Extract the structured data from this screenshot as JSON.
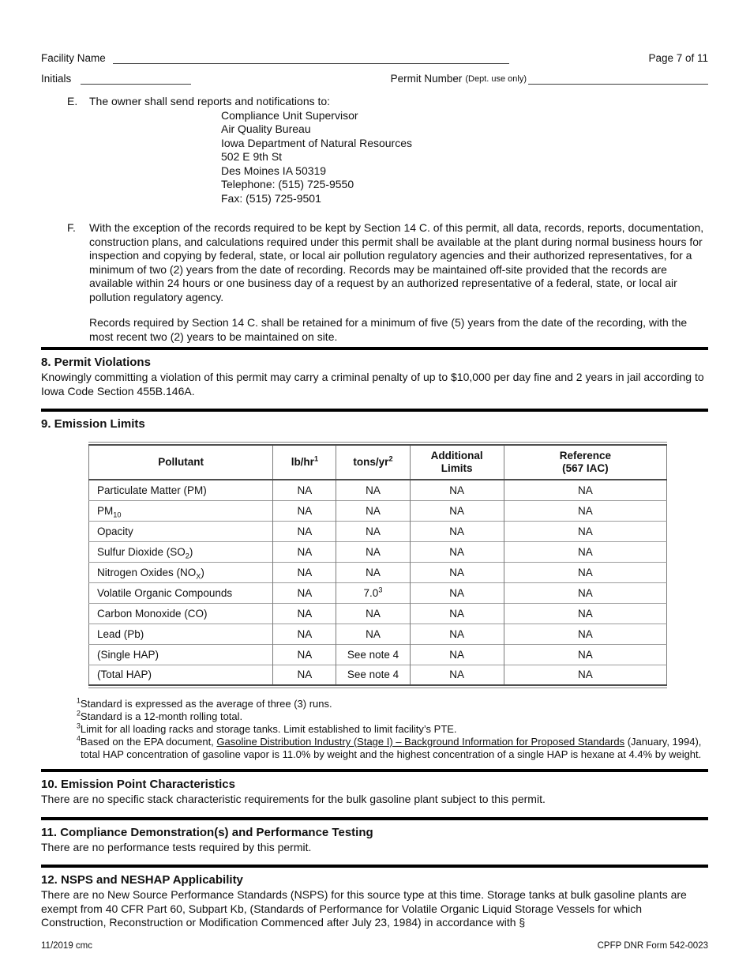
{
  "header": {
    "facility_name_label": "Facility Name",
    "page_label": "Page 7 of 11",
    "initials_label": "Initials",
    "permit_number_label": "Permit Number",
    "permit_number_note": "(Dept. use only)"
  },
  "item_e": {
    "letter": "E.",
    "intro": "The owner shall send reports and notifications to:",
    "address_lines": [
      "Compliance Unit Supervisor",
      "Air Quality Bureau",
      "Iowa Department of Natural Resources",
      "502 E 9th St",
      "Des Moines IA 50319",
      "Telephone: (515) 725-9550",
      "Fax: (515) 725-9501"
    ]
  },
  "item_f": {
    "letter": "F.",
    "para1": "With the exception of the records required to be kept by Section 14 C. of this permit, all data, records, reports, documentation, construction plans, and calculations required under this permit shall be available at the plant during normal business hours for inspection and copying by federal, state, or local air pollution regulatory agencies and their authorized representatives, for a minimum of two (2) years from the date of recording. Records may be maintained off-site provided that the records are available within 24 hours or one business day of a request by an authorized representative of a federal, state, or local air pollution regulatory agency.",
    "para2": "Records required by Section 14 C. shall be retained for a minimum of five (5) years from the date of the recording, with the most recent two (2) years to be maintained on site."
  },
  "section8": {
    "title": "8. Permit Violations",
    "body": "Knowingly committing a violation of this permit may carry a criminal penalty of up to $10,000 per day fine and 2 years in jail according to Iowa Code Section 455B.146A."
  },
  "section9": {
    "title": "9. Emission Limits",
    "table": {
      "headers": [
        "Pollutant",
        "lb/hr^1^",
        "tons/yr^2^",
        "Additional\nLimits",
        "Reference\n(567 IAC)"
      ],
      "rows": [
        [
          "Particulate Matter (PM)",
          "NA",
          "NA",
          "NA",
          "NA"
        ],
        [
          "PM~10~",
          "NA",
          "NA",
          "NA",
          "NA"
        ],
        [
          "Opacity",
          "NA",
          "NA",
          "NA",
          "NA"
        ],
        [
          "Sulfur Dioxide (SO~2~)",
          "NA",
          "NA",
          "NA",
          "NA"
        ],
        [
          "Nitrogen Oxides (NO~X~)",
          "NA",
          "NA",
          "NA",
          "NA"
        ],
        [
          "Volatile Organic Compounds",
          "NA",
          "7.0^3^",
          "NA",
          "NA"
        ],
        [
          "Carbon Monoxide (CO)",
          "NA",
          "NA",
          "NA",
          "NA"
        ],
        [
          "Lead (Pb)",
          "NA",
          "NA",
          "NA",
          "NA"
        ],
        [
          "(Single HAP)",
          "NA",
          "See note 4",
          "NA",
          "NA"
        ],
        [
          "(Total HAP)",
          "NA",
          "See note 4",
          "NA",
          "NA"
        ]
      ]
    },
    "footnotes": [
      {
        "marker": "1",
        "parts": [
          {
            "t": "Standard is expressed as the average of three (3) runs."
          }
        ]
      },
      {
        "marker": "2",
        "parts": [
          {
            "t": "Standard is a 12-month rolling total."
          }
        ]
      },
      {
        "marker": "3",
        "parts": [
          {
            "t": "Limit for all loading racks and storage tanks. Limit established to limit facility’s PTE."
          }
        ]
      },
      {
        "marker": "4",
        "parts": [
          {
            "t": "Based on the EPA document, "
          },
          {
            "u": "Gasoline Distribution Industry (Stage I) – Background Information for Proposed Standards"
          },
          {
            "t": " (January, 1994), total HAP concentration of gasoline vapor is 11.0% by weight and the highest concentration of a single HAP is hexane at 4.4% by weight."
          }
        ]
      }
    ]
  },
  "section10": {
    "title": "10. Emission Point Characteristics",
    "body": "There are no specific stack characteristic requirements for the bulk gasoline plant subject to this permit."
  },
  "section11": {
    "title": "11. Compliance Demonstration(s) and Performance Testing",
    "body": "There are no performance tests required by this permit."
  },
  "section12": {
    "title": "12. NSPS and NESHAP Applicability",
    "body": "There are no New Source Performance Standards (NSPS) for this source type at this time. Storage tanks at bulk gasoline plants are exempt from 40 CFR Part 60, Subpart Kb, (Standards of Performance for Volatile Organic Liquid Storage Vessels for which Construction, Reconstruction or Modification Commenced after July 23, 1984) in accordance with §"
  },
  "footer": {
    "left": "11/2019 cmc",
    "right": "CPFP DNR Form 542-0023"
  },
  "colors": {
    "section_bar": "#000000",
    "table_outer_border": "#4d4d4d",
    "table_grid": "#7a7a7a",
    "table_row_line": "#9c9c9c",
    "text": "#111111",
    "background": "#ffffff"
  }
}
